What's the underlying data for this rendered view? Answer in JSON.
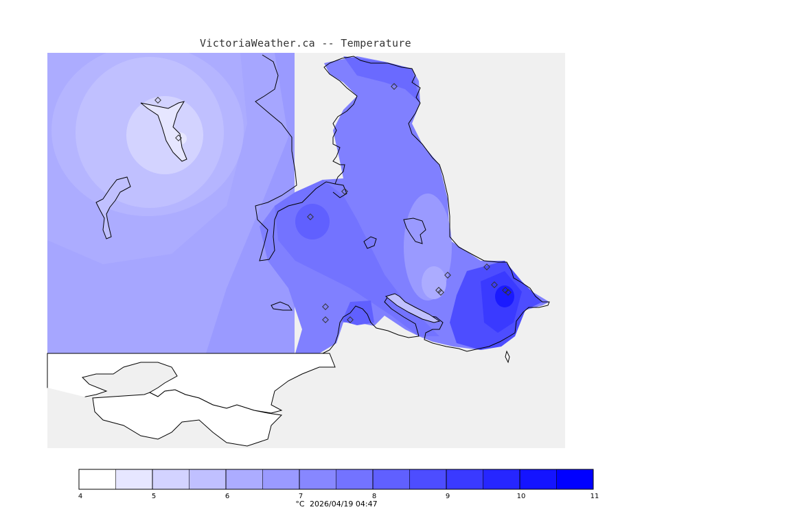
{
  "title": "VictoriaWeather.ca -- Temperature",
  "colorbar": {
    "ticks": [
      "4",
      "5",
      "6",
      "7",
      "8",
      "9",
      "10",
      "11"
    ],
    "colors": [
      "#ffffff",
      "#e6e6ff",
      "#d3d3ff",
      "#c0c0ff",
      "#acacff",
      "#9a9aff",
      "#8787ff",
      "#7373ff",
      "#6060ff",
      "#4d4dff",
      "#3a3aff",
      "#2626ff",
      "#1414ff",
      "#0000ff"
    ],
    "unit": "°C",
    "timestamp": "2026/04/19 04:47"
  },
  "map_colors": {
    "land_background": "#f0f0f0",
    "coast": "#000000"
  }
}
